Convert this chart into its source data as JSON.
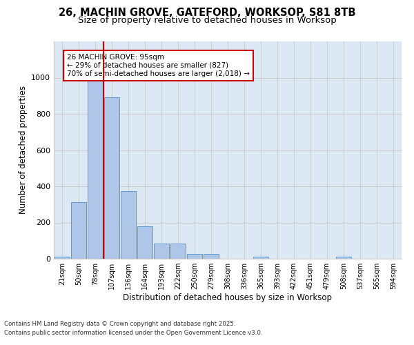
{
  "title_line1": "26, MACHIN GROVE, GATEFORD, WORKSOP, S81 8TB",
  "title_line2": "Size of property relative to detached houses in Worksop",
  "xlabel": "Distribution of detached houses by size in Worksop",
  "ylabel": "Number of detached properties",
  "categories": [
    "21sqm",
    "50sqm",
    "78sqm",
    "107sqm",
    "136sqm",
    "164sqm",
    "193sqm",
    "222sqm",
    "250sqm",
    "279sqm",
    "308sqm",
    "336sqm",
    "365sqm",
    "393sqm",
    "422sqm",
    "451sqm",
    "479sqm",
    "508sqm",
    "537sqm",
    "565sqm",
    "594sqm"
  ],
  "values": [
    13,
    313,
    1000,
    890,
    375,
    180,
    85,
    85,
    25,
    25,
    0,
    0,
    13,
    0,
    0,
    0,
    0,
    13,
    0,
    0,
    0
  ],
  "bar_color": "#aec6e8",
  "bar_edge_color": "#5b9bd5",
  "grid_color": "#cccccc",
  "bg_color": "#dde8f5",
  "vline_x_index": 2.5,
  "vline_color": "#cc0000",
  "annotation_text": "26 MACHIN GROVE: 95sqm\n← 29% of detached houses are smaller (827)\n70% of semi-detached houses are larger (2,018) →",
  "annotation_box_color": "#ffffff",
  "annotation_box_edge": "#cc0000",
  "ylim": [
    0,
    1200
  ],
  "yticks": [
    0,
    200,
    400,
    600,
    800,
    1000
  ],
  "footer_line1": "Contains HM Land Registry data © Crown copyright and database right 2025.",
  "footer_line2": "Contains public sector information licensed under the Open Government Licence v3.0."
}
